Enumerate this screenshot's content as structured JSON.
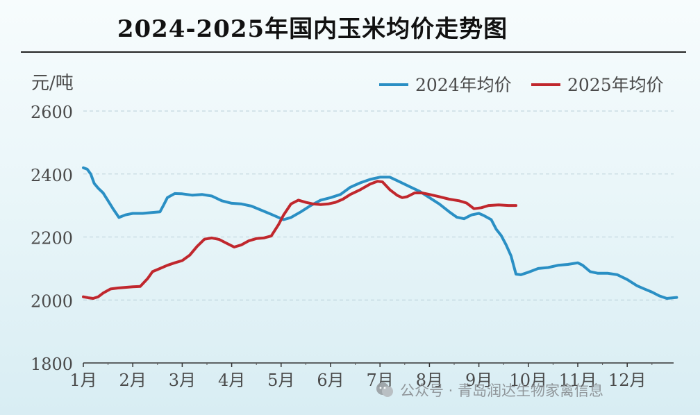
{
  "chart_data": {
    "type": "line",
    "title": "2024-2025年国内玉米均价走势图",
    "ylabel": "元/吨",
    "xlabel": "",
    "ylim": [
      1800,
      2600
    ],
    "yticks": [
      1800,
      2000,
      2200,
      2400,
      2600
    ],
    "xlim": [
      1,
      13
    ],
    "x_tick_values": [
      1,
      2,
      3,
      4,
      5,
      6,
      7,
      8,
      9,
      10,
      11,
      12
    ],
    "x_tick_labels": [
      "1月",
      "2月",
      "3月",
      "4月",
      "5月",
      "6月",
      "7月",
      "8月",
      "9月",
      "10月",
      "11月",
      "12月"
    ],
    "grid": "horizontal-dashed",
    "legend_position": "top-right",
    "series": [
      {
        "name": "2024年均价",
        "color": "#2a8fc4",
        "points": [
          [
            1.0,
            2420
          ],
          [
            1.08,
            2415
          ],
          [
            1.15,
            2400
          ],
          [
            1.22,
            2370
          ],
          [
            1.3,
            2355
          ],
          [
            1.4,
            2340
          ],
          [
            1.5,
            2315
          ],
          [
            1.6,
            2290
          ],
          [
            1.72,
            2262
          ],
          [
            1.85,
            2270
          ],
          [
            2.0,
            2275
          ],
          [
            2.2,
            2275
          ],
          [
            2.4,
            2278
          ],
          [
            2.55,
            2280
          ],
          [
            2.62,
            2300
          ],
          [
            2.7,
            2325
          ],
          [
            2.85,
            2338
          ],
          [
            3.0,
            2337
          ],
          [
            3.2,
            2333
          ],
          [
            3.4,
            2335
          ],
          [
            3.6,
            2330
          ],
          [
            3.8,
            2315
          ],
          [
            4.0,
            2307
          ],
          [
            4.2,
            2305
          ],
          [
            4.4,
            2298
          ],
          [
            4.6,
            2285
          ],
          [
            4.8,
            2272
          ],
          [
            4.95,
            2262
          ],
          [
            5.05,
            2255
          ],
          [
            5.2,
            2262
          ],
          [
            5.4,
            2280
          ],
          [
            5.6,
            2300
          ],
          [
            5.8,
            2317
          ],
          [
            6.0,
            2325
          ],
          [
            6.2,
            2335
          ],
          [
            6.4,
            2358
          ],
          [
            6.6,
            2372
          ],
          [
            6.8,
            2383
          ],
          [
            7.0,
            2390
          ],
          [
            7.2,
            2390
          ],
          [
            7.4,
            2375
          ],
          [
            7.6,
            2360
          ],
          [
            7.8,
            2345
          ],
          [
            8.0,
            2325
          ],
          [
            8.2,
            2305
          ],
          [
            8.4,
            2280
          ],
          [
            8.55,
            2263
          ],
          [
            8.7,
            2258
          ],
          [
            8.85,
            2270
          ],
          [
            9.0,
            2275
          ],
          [
            9.1,
            2268
          ],
          [
            9.25,
            2255
          ],
          [
            9.35,
            2225
          ],
          [
            9.45,
            2205
          ],
          [
            9.55,
            2175
          ],
          [
            9.65,
            2140
          ],
          [
            9.75,
            2082
          ],
          [
            9.85,
            2080
          ],
          [
            10.0,
            2088
          ],
          [
            10.2,
            2100
          ],
          [
            10.4,
            2103
          ],
          [
            10.6,
            2110
          ],
          [
            10.8,
            2113
          ],
          [
            11.0,
            2118
          ],
          [
            11.1,
            2110
          ],
          [
            11.25,
            2090
          ],
          [
            11.4,
            2085
          ],
          [
            11.6,
            2085
          ],
          [
            11.8,
            2080
          ],
          [
            12.0,
            2065
          ],
          [
            12.2,
            2045
          ],
          [
            12.35,
            2035
          ],
          [
            12.5,
            2025
          ],
          [
            12.65,
            2013
          ],
          [
            12.8,
            2005
          ],
          [
            13.0,
            2008
          ]
        ]
      },
      {
        "name": "2025年均价",
        "color": "#c0272d",
        "points": [
          [
            1.0,
            2010
          ],
          [
            1.1,
            2007
          ],
          [
            1.2,
            2005
          ],
          [
            1.3,
            2010
          ],
          [
            1.4,
            2022
          ],
          [
            1.55,
            2035
          ],
          [
            1.7,
            2038
          ],
          [
            1.85,
            2040
          ],
          [
            2.0,
            2042
          ],
          [
            2.15,
            2043
          ],
          [
            2.3,
            2068
          ],
          [
            2.4,
            2090
          ],
          [
            2.55,
            2100
          ],
          [
            2.7,
            2110
          ],
          [
            2.85,
            2118
          ],
          [
            3.0,
            2125
          ],
          [
            3.15,
            2142
          ],
          [
            3.3,
            2170
          ],
          [
            3.45,
            2193
          ],
          [
            3.6,
            2197
          ],
          [
            3.75,
            2192
          ],
          [
            3.9,
            2180
          ],
          [
            4.05,
            2168
          ],
          [
            4.2,
            2175
          ],
          [
            4.35,
            2188
          ],
          [
            4.5,
            2195
          ],
          [
            4.65,
            2197
          ],
          [
            4.8,
            2203
          ],
          [
            4.95,
            2240
          ],
          [
            5.05,
            2270
          ],
          [
            5.2,
            2305
          ],
          [
            5.35,
            2317
          ],
          [
            5.5,
            2310
          ],
          [
            5.65,
            2305
          ],
          [
            5.8,
            2303
          ],
          [
            5.95,
            2305
          ],
          [
            6.1,
            2310
          ],
          [
            6.25,
            2320
          ],
          [
            6.4,
            2335
          ],
          [
            6.6,
            2350
          ],
          [
            6.8,
            2368
          ],
          [
            6.95,
            2377
          ],
          [
            7.05,
            2375
          ],
          [
            7.2,
            2350
          ],
          [
            7.35,
            2332
          ],
          [
            7.45,
            2325
          ],
          [
            7.55,
            2328
          ],
          [
            7.7,
            2340
          ],
          [
            7.85,
            2340
          ],
          [
            8.0,
            2335
          ],
          [
            8.2,
            2328
          ],
          [
            8.4,
            2320
          ],
          [
            8.6,
            2315
          ],
          [
            8.75,
            2308
          ],
          [
            8.9,
            2290
          ],
          [
            9.05,
            2293
          ],
          [
            9.2,
            2300
          ],
          [
            9.4,
            2302
          ],
          [
            9.6,
            2300
          ],
          [
            9.75,
            2300
          ]
        ]
      }
    ]
  },
  "watermark": {
    "text": "公众号 · 青岛润达生物家禽信息"
  }
}
